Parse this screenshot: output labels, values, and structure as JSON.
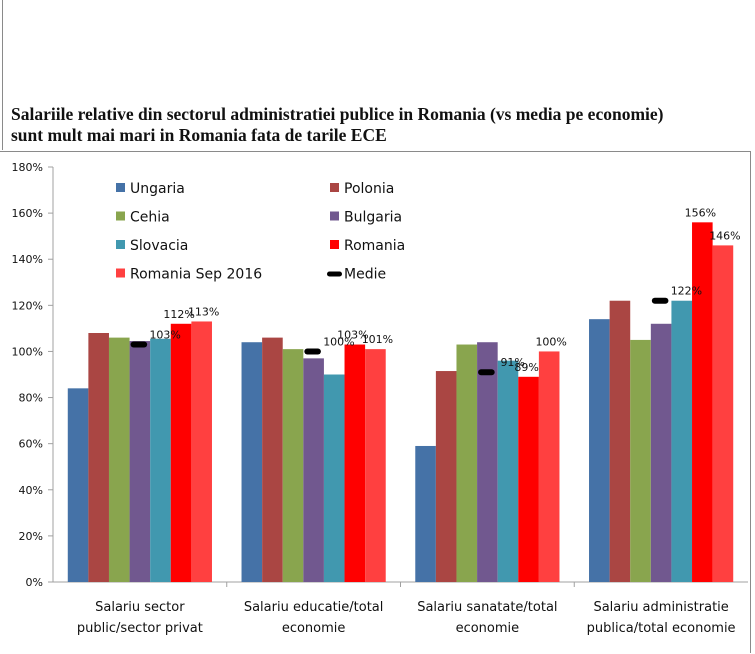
{
  "chart_data": {
    "type": "bar",
    "title": "Salariile relative din sectorul administratiei publice in Romania (vs media pe economie) sunt mult mai mari in Romania fata de tarile ECE",
    "title_lines": [
      "Salariile relative din sectorul administratiei publice in Romania (vs media pe economie)",
      "sunt mult mai mari in Romania fata de tarile ECE"
    ],
    "xlabel": "",
    "ylabel": "",
    "ylim": [
      0,
      180
    ],
    "yticks": [
      0,
      20,
      40,
      60,
      80,
      100,
      120,
      140,
      160,
      180
    ],
    "ytick_labels": [
      "0%",
      "20%",
      "40%",
      "60%",
      "80%",
      "100%",
      "120%",
      "140%",
      "160%",
      "180%"
    ],
    "grid": false,
    "legend_position": "top-left (inside plot, two columns)",
    "categories": [
      [
        "Salariu sector",
        "public/sector privat"
      ],
      [
        "Salariu educatie/total",
        "economie"
      ],
      [
        "Salariu sanatate/total",
        "economie"
      ],
      [
        "Salariu administratie",
        "publica/total economie"
      ]
    ],
    "series": [
      {
        "name": "Ungaria",
        "color": "#4572A7",
        "values": [
          84,
          104,
          59,
          114
        ]
      },
      {
        "name": "Polonia",
        "color": "#AA4643",
        "values": [
          108,
          106,
          91.5,
          122
        ]
      },
      {
        "name": "Cehia",
        "color": "#89A54E",
        "values": [
          106,
          101,
          103,
          105
        ]
      },
      {
        "name": "Bulgaria",
        "color": "#71588F",
        "values": [
          104.5,
          97,
          104,
          112
        ]
      },
      {
        "name": "Slovacia",
        "color": "#4198AF",
        "values": [
          105.5,
          90,
          96,
          122
        ]
      },
      {
        "name": "Romania",
        "color": "#FF0000",
        "values": [
          112,
          103,
          89,
          156
        ],
        "labels": [
          "112%",
          "103%",
          "89%",
          "156%"
        ]
      },
      {
        "name": "Romania Sep 2016",
        "color": "#FF4040",
        "values": [
          113,
          101,
          100,
          146
        ],
        "labels": [
          "113%",
          "101%",
          "100%",
          "146%"
        ]
      }
    ],
    "average": {
      "name": "Medie",
      "color": "#000000",
      "values": [
        103,
        100,
        91,
        122
      ],
      "labels": [
        "103%",
        "100%",
        "91%",
        "122%"
      ]
    },
    "legend": [
      {
        "name": "Ungaria",
        "marker": "square",
        "color": "#4572A7"
      },
      {
        "name": "Polonia",
        "marker": "square",
        "color": "#AA4643"
      },
      {
        "name": "Cehia",
        "marker": "square",
        "color": "#89A54E"
      },
      {
        "name": "Bulgaria",
        "marker": "square",
        "color": "#71588F"
      },
      {
        "name": "Slovacia",
        "marker": "square",
        "color": "#4198AF"
      },
      {
        "name": "Romania",
        "marker": "square",
        "color": "#FF0000"
      },
      {
        "name": "Romania Sep 2016",
        "marker": "square",
        "color": "#FF4040"
      },
      {
        "name": "Medie",
        "marker": "dash",
        "color": "#000000"
      }
    ]
  }
}
